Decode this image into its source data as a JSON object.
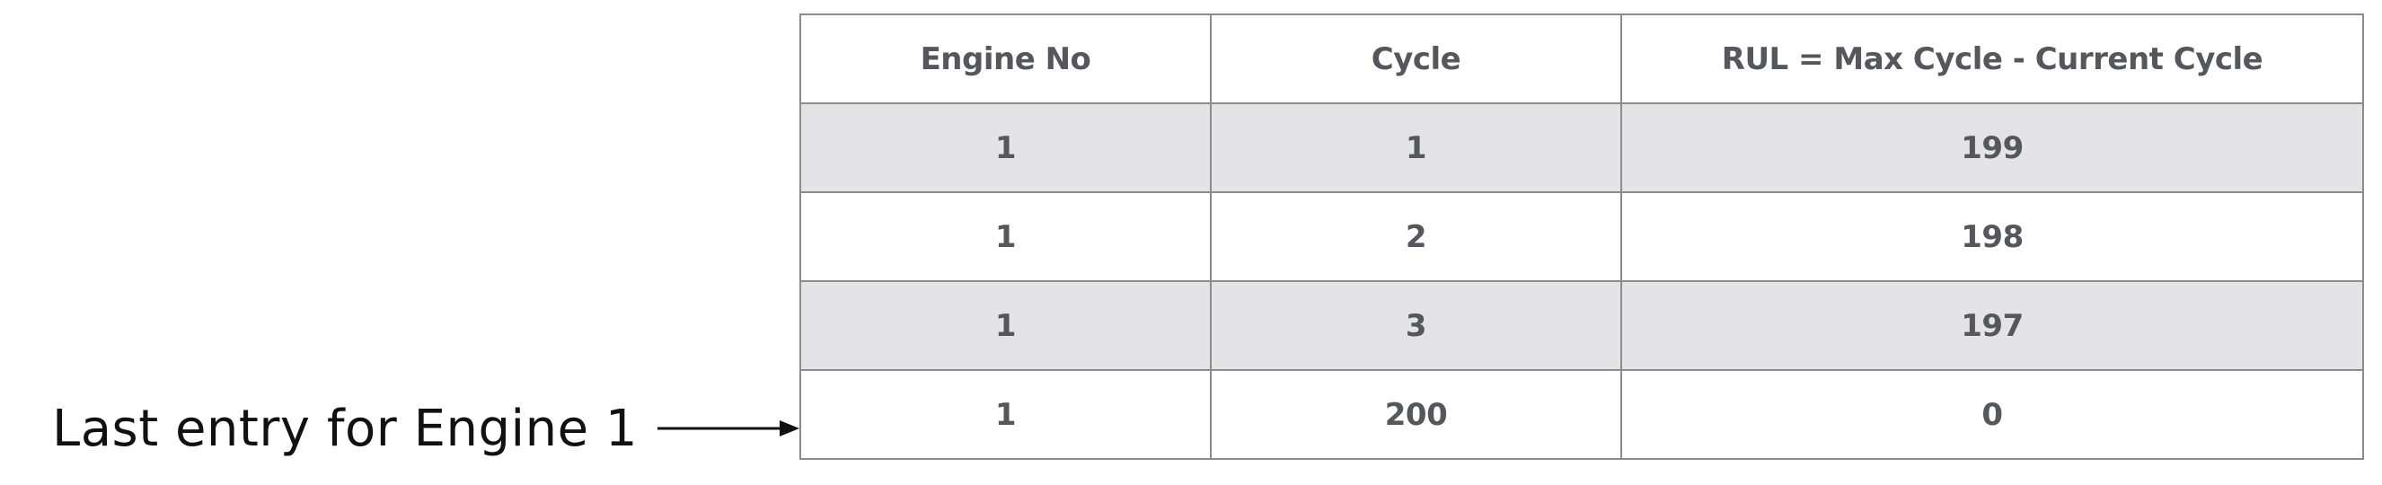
{
  "table": {
    "headers": [
      "Engine No",
      "Cycle",
      "RUL = Max Cycle - Current Cycle"
    ],
    "rows": [
      [
        "1",
        "1",
        "199"
      ],
      [
        "1",
        "2",
        "198"
      ],
      [
        "1",
        "3",
        "197"
      ],
      [
        "1",
        "200",
        "0"
      ]
    ]
  },
  "annotation": {
    "text": "Last entry for Engine 1",
    "arrow_icon": "right-arrow-icon"
  },
  "colors": {
    "text": "#55575c",
    "border": "#8c8c8c",
    "stripe": "#e4e4e6",
    "background": "#ffffff",
    "annotation_text": "#111111"
  }
}
